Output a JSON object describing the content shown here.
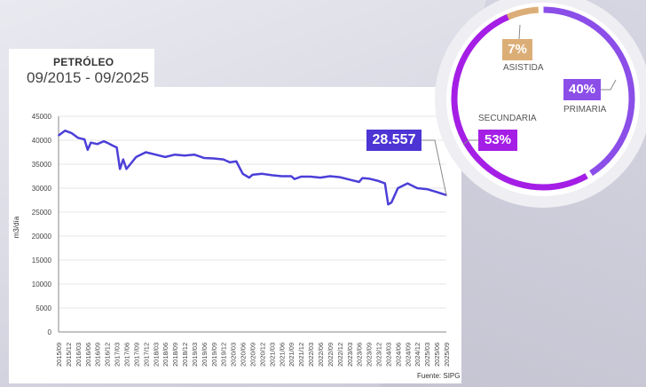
{
  "title": "PETRÓLEO",
  "period": "09/2015 - 09/2025",
  "source": "Fuente: SIPG",
  "callout": "28.557",
  "donut": {
    "segments": [
      {
        "name": "ASISTIDA",
        "label": "7%",
        "value": 7,
        "color": "#dcae77"
      },
      {
        "name": "PRIMARIA",
        "label": "40%",
        "value": 40,
        "color": "#8b4ee8"
      },
      {
        "name": "SECUNDARIA",
        "label": "53%",
        "value": 53,
        "color": "#a41ee6"
      }
    ]
  },
  "chart_data": {
    "type": "line",
    "ylabel": "m3/día",
    "ylim": [
      0,
      45000
    ],
    "yticks": [
      0,
      5000,
      10000,
      15000,
      20000,
      25000,
      30000,
      35000,
      40000,
      45000
    ],
    "xticks": [
      "2015/09",
      "2015/12",
      "2016/03",
      "2016/06",
      "2016/09",
      "2016/12",
      "2017/03",
      "2017/06",
      "2017/09",
      "2017/12",
      "2018/03",
      "2018/06",
      "2018/09",
      "2018/12",
      "2019/03",
      "2019/06",
      "2019/09",
      "2019/12",
      "2020/03",
      "2020/06",
      "2020/09",
      "2020/12",
      "2021/03",
      "2021/06",
      "2021/09",
      "2021/12",
      "2022/03",
      "2022/06",
      "2022/09",
      "2022/12",
      "2023/03",
      "2023/06",
      "2023/09",
      "2023/12",
      "2024/03",
      "2024/06",
      "2024/09",
      "2024/12",
      "2025/03",
      "2025/06",
      "2025/09"
    ],
    "series": [
      {
        "name": "Petróleo",
        "color": "#4b3fd8",
        "points": [
          [
            "2015/09",
            41000
          ],
          [
            "2015/11",
            42000
          ],
          [
            "2016/01",
            41500
          ],
          [
            "2016/03",
            40500
          ],
          [
            "2016/05",
            40200
          ],
          [
            "2016/06",
            38000
          ],
          [
            "2016/07",
            39500
          ],
          [
            "2016/09",
            39200
          ],
          [
            "2016/11",
            39800
          ],
          [
            "2016/12",
            39500
          ],
          [
            "2017/02",
            38800
          ],
          [
            "2017/03",
            38500
          ],
          [
            "2017/04",
            34000
          ],
          [
            "2017/05",
            36000
          ],
          [
            "2017/06",
            34000
          ],
          [
            "2017/09",
            36500
          ],
          [
            "2017/12",
            37500
          ],
          [
            "2018/03",
            37000
          ],
          [
            "2018/06",
            36500
          ],
          [
            "2018/09",
            37000
          ],
          [
            "2018/12",
            36800
          ],
          [
            "2019/03",
            37000
          ],
          [
            "2019/06",
            36300
          ],
          [
            "2019/09",
            36200
          ],
          [
            "2019/12",
            36000
          ],
          [
            "2020/02",
            35400
          ],
          [
            "2020/04",
            35600
          ],
          [
            "2020/06",
            33000
          ],
          [
            "2020/08",
            32200
          ],
          [
            "2020/09",
            32800
          ],
          [
            "2020/12",
            33000
          ],
          [
            "2021/03",
            32700
          ],
          [
            "2021/06",
            32500
          ],
          [
            "2021/09",
            32500
          ],
          [
            "2021/10",
            31900
          ],
          [
            "2021/12",
            32400
          ],
          [
            "2022/03",
            32400
          ],
          [
            "2022/06",
            32200
          ],
          [
            "2022/09",
            32500
          ],
          [
            "2022/12",
            32300
          ],
          [
            "2023/03",
            31800
          ],
          [
            "2023/06",
            31300
          ],
          [
            "2023/07",
            32100
          ],
          [
            "2023/09",
            32000
          ],
          [
            "2023/12",
            31500
          ],
          [
            "2024/02",
            31000
          ],
          [
            "2024/03",
            26600
          ],
          [
            "2024/04",
            27000
          ],
          [
            "2024/06",
            30000
          ],
          [
            "2024/09",
            31000
          ],
          [
            "2024/12",
            30000
          ],
          [
            "2025/03",
            29800
          ],
          [
            "2025/06",
            29200
          ],
          [
            "2025/09",
            28557
          ]
        ]
      }
    ]
  }
}
